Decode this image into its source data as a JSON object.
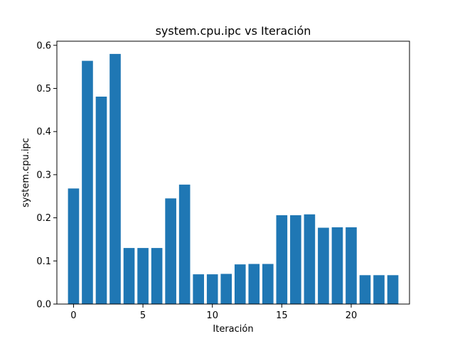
{
  "chart_data": {
    "type": "bar",
    "title": "system.cpu.ipc vs Iteración",
    "xlabel": "Iteración",
    "ylabel": "system.cpu.ipc",
    "x": [
      0,
      1,
      2,
      3,
      4,
      5,
      6,
      7,
      8,
      9,
      10,
      11,
      12,
      13,
      14,
      15,
      16,
      17,
      18,
      19,
      20,
      21,
      22,
      23
    ],
    "values": [
      0.268,
      0.564,
      0.481,
      0.58,
      0.13,
      0.13,
      0.13,
      0.245,
      0.277,
      0.069,
      0.069,
      0.07,
      0.092,
      0.093,
      0.093,
      0.206,
      0.206,
      0.208,
      0.177,
      0.178,
      0.178,
      0.067,
      0.067,
      0.067
    ],
    "xlim": [
      -1.2,
      24.2
    ],
    "ylim": [
      0,
      0.6095
    ],
    "xticks": [
      0,
      5,
      10,
      15,
      20
    ],
    "xtick_labels": [
      "0",
      "5",
      "10",
      "15",
      "20"
    ],
    "yticks": [
      0.0,
      0.1,
      0.2,
      0.3,
      0.4,
      0.5,
      0.6
    ],
    "ytick_labels": [
      "0.0",
      "0.1",
      "0.2",
      "0.3",
      "0.4",
      "0.5",
      "0.6"
    ],
    "bar_color": "#1f77b4",
    "grid": false,
    "legend": "none"
  }
}
